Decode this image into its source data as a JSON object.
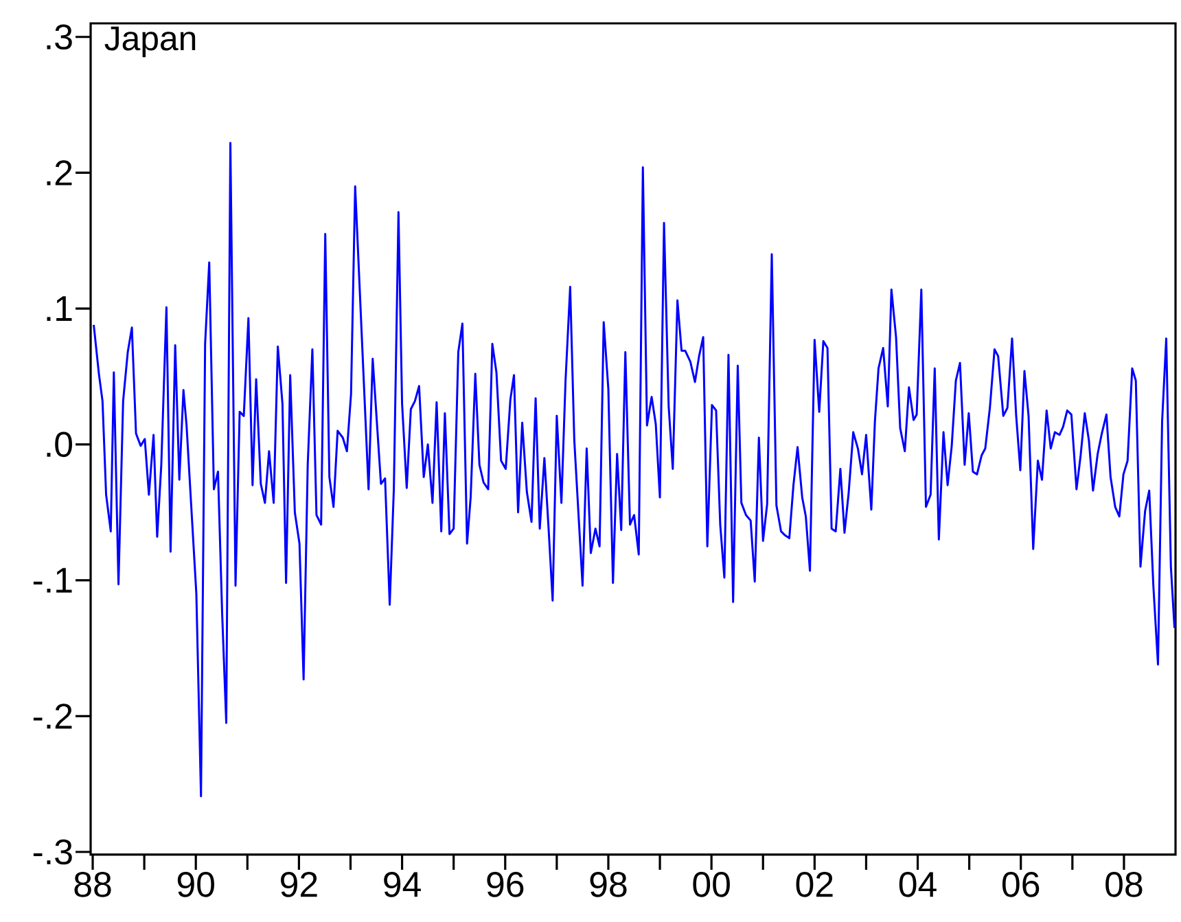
{
  "chart_data": {
    "type": "line",
    "title": "Japan",
    "xlim": [
      1987.96,
      2009.0
    ],
    "ylim": [
      -0.302,
      0.31
    ],
    "xticks": [
      {
        "value": 1988,
        "label": "88"
      },
      {
        "value": 1989,
        "label": null
      },
      {
        "value": 1990,
        "label": "90"
      },
      {
        "value": 1991,
        "label": null
      },
      {
        "value": 1992,
        "label": "92"
      },
      {
        "value": 1993,
        "label": null
      },
      {
        "value": 1994,
        "label": "94"
      },
      {
        "value": 1995,
        "label": null
      },
      {
        "value": 1996,
        "label": "96"
      },
      {
        "value": 1997,
        "label": null
      },
      {
        "value": 1998,
        "label": "98"
      },
      {
        "value": 1999,
        "label": null
      },
      {
        "value": 2000,
        "label": "00"
      },
      {
        "value": 2001,
        "label": null
      },
      {
        "value": 2002,
        "label": "02"
      },
      {
        "value": 2003,
        "label": null
      },
      {
        "value": 2004,
        "label": "04"
      },
      {
        "value": 2005,
        "label": null
      },
      {
        "value": 2006,
        "label": "06"
      },
      {
        "value": 2007,
        "label": null
      },
      {
        "value": 2008,
        "label": "08"
      }
    ],
    "yticks": [
      {
        "value": -0.3,
        "label": "-.3"
      },
      {
        "value": -0.2,
        "label": "-.2"
      },
      {
        "value": -0.1,
        "label": "-.1"
      },
      {
        "value": 0,
        "label": ".0"
      },
      {
        "value": 0.1,
        "label": ".1"
      },
      {
        "value": 0.2,
        "label": ".2"
      },
      {
        "value": 0.3,
        "label": ".3"
      }
    ],
    "x": [
      1988.02,
      1988.12,
      1988.19,
      1988.26,
      1988.35,
      1988.41,
      1988.5,
      1988.59,
      1988.68,
      1988.76,
      1988.84,
      1988.93,
      1989.01,
      1989.09,
      1989.18,
      1989.25,
      1989.33,
      1989.43,
      1989.51,
      1989.6,
      1989.68,
      1989.76,
      1989.82,
      1990.01,
      1990.1,
      1990.18,
      1990.26,
      1990.35,
      1990.43,
      1990.51,
      1990.59,
      1990.67,
      1990.77,
      1990.85,
      1990.93,
      1991.02,
      1991.1,
      1991.17,
      1991.26,
      1991.34,
      1991.42,
      1991.51,
      1991.59,
      1991.68,
      1991.75,
      1991.83,
      1991.92,
      1992.01,
      1992.09,
      1992.17,
      1992.26,
      1992.34,
      1992.43,
      1992.51,
      1992.59,
      1992.67,
      1992.75,
      1992.85,
      1992.93,
      1993.01,
      1993.09,
      1993.35,
      1993.43,
      1993.59,
      1993.67,
      1993.76,
      1993.84,
      1993.93,
      1994.0,
      1994.09,
      1994.17,
      1994.25,
      1994.33,
      1994.42,
      1994.5,
      1994.59,
      1994.67,
      1994.76,
      1994.83,
      1994.92,
      1995.0,
      1995.09,
      1995.17,
      1995.26,
      1995.33,
      1995.42,
      1995.5,
      1995.58,
      1995.67,
      1995.75,
      1995.83,
      1995.92,
      1996.01,
      1996.1,
      1996.17,
      1996.25,
      1996.33,
      1996.42,
      1996.51,
      1996.59,
      1996.67,
      1996.76,
      1996.84,
      1996.92,
      1997.0,
      1997.09,
      1997.17,
      1997.26,
      1997.34,
      1997.5,
      1997.58,
      1997.66,
      1997.75,
      1997.83,
      1997.91,
      1998.0,
      1998.09,
      1998.17,
      1998.25,
      1998.33,
      1998.42,
      1998.5,
      1998.59,
      1998.67,
      1998.75,
      1998.84,
      1998.92,
      1999.0,
      1999.08,
      1999.17,
      1999.25,
      1999.34,
      1999.42,
      1999.49,
      1999.59,
      1999.68,
      1999.76,
      1999.84,
      1999.92,
      2000.01,
      2000.09,
      2000.17,
      2000.25,
      2000.33,
      2000.42,
      2000.51,
      2000.58,
      2000.67,
      2000.76,
      2000.84,
      2000.92,
      2001.0,
      2001.08,
      2001.17,
      2001.26,
      2001.35,
      2001.43,
      2001.51,
      2001.59,
      2001.67,
      2001.76,
      2001.83,
      2001.91,
      2002.0,
      2002.09,
      2002.17,
      2002.25,
      2002.33,
      2002.41,
      2002.5,
      2002.58,
      2002.66,
      2002.75,
      2002.84,
      2002.92,
      2003.0,
      2003.1,
      2003.17,
      2003.24,
      2003.33,
      2003.42,
      2003.49,
      2003.58,
      2003.66,
      2003.75,
      2003.83,
      2003.92,
      2003.98,
      2004.07,
      2004.16,
      2004.25,
      2004.33,
      2004.41,
      2004.5,
      2004.58,
      2004.66,
      2004.74,
      2004.82,
      2004.91,
      2004.99,
      2005.07,
      2005.15,
      2005.24,
      2005.31,
      2005.4,
      2005.49,
      2005.56,
      2005.66,
      2005.74,
      2005.83,
      2005.91,
      2005.99,
      2006.07,
      2006.15,
      2006.24,
      2006.33,
      2006.41,
      2006.5,
      2006.58,
      2006.66,
      2006.75,
      2006.82,
      2006.9,
      2006.98,
      2007.08,
      2007.16,
      2007.24,
      2007.32,
      2007.4,
      2007.49,
      2007.57,
      2007.66,
      2007.74,
      2007.83,
      2007.91,
      2007.99,
      2008.07,
      2008.16,
      2008.23,
      2008.32,
      2008.41,
      2008.49,
      2008.57,
      2008.66,
      2008.74,
      2008.82,
      2008.91,
      2008.98
    ],
    "series": [
      {
        "color": "#0000ff",
        "values": [
          0.088,
          0.052,
          0.032,
          -0.037,
          -0.064,
          0.053,
          -0.103,
          0.032,
          0.068,
          0.086,
          0.008,
          -0.001,
          0.004,
          -0.037,
          0.007,
          -0.068,
          -0.015,
          0.101,
          -0.079,
          0.073,
          -0.026,
          0.04,
          0.014,
          -0.11,
          -0.259,
          0.074,
          0.134,
          -0.033,
          -0.02,
          -0.124,
          -0.205,
          0.222,
          -0.104,
          0.024,
          0.021,
          0.093,
          -0.03,
          0.048,
          -0.029,
          -0.043,
          -0.005,
          -0.043,
          0.072,
          0.03,
          -0.102,
          0.051,
          -0.05,
          -0.073,
          -0.173,
          -0.015,
          0.07,
          -0.052,
          -0.059,
          0.155,
          -0.024,
          -0.046,
          0.01,
          0.005,
          -0.005,
          0.037,
          0.19,
          -0.033,
          0.063,
          -0.029,
          -0.025,
          -0.118,
          -0.033,
          0.171,
          0.03,
          -0.032,
          0.026,
          0.032,
          0.043,
          -0.024,
          0.0,
          -0.043,
          0.031,
          -0.064,
          0.023,
          -0.066,
          -0.062,
          0.068,
          0.089,
          -0.073,
          -0.039,
          0.052,
          -0.015,
          -0.028,
          -0.033,
          0.074,
          0.053,
          -0.012,
          -0.018,
          0.033,
          0.051,
          -0.05,
          0.016,
          -0.035,
          -0.057,
          0.034,
          -0.062,
          -0.01,
          -0.061,
          -0.115,
          0.021,
          -0.043,
          0.047,
          0.116,
          0.003,
          -0.104,
          -0.003,
          -0.08,
          -0.062,
          -0.075,
          0.09,
          0.041,
          -0.102,
          -0.007,
          -0.063,
          0.068,
          -0.059,
          -0.052,
          -0.081,
          0.204,
          0.014,
          0.035,
          0.015,
          -0.039,
          0.163,
          0.028,
          -0.018,
          0.106,
          0.069,
          0.069,
          0.061,
          0.046,
          0.065,
          0.079,
          -0.075,
          0.029,
          0.025,
          -0.059,
          -0.098,
          0.066,
          -0.116,
          0.058,
          -0.043,
          -0.052,
          -0.056,
          -0.101,
          0.005,
          -0.071,
          -0.044,
          0.14,
          -0.045,
          -0.064,
          -0.067,
          -0.069,
          -0.03,
          -0.002,
          -0.039,
          -0.053,
          -0.093,
          0.077,
          0.024,
          0.076,
          0.071,
          -0.062,
          -0.064,
          -0.018,
          -0.065,
          -0.036,
          0.009,
          -0.003,
          -0.022,
          0.007,
          -0.048,
          0.017,
          0.056,
          0.071,
          0.028,
          0.114,
          0.079,
          0.012,
          -0.005,
          0.042,
          0.018,
          0.022,
          0.114,
          -0.046,
          -0.037,
          0.056,
          -0.07,
          0.009,
          -0.03,
          -0.001,
          0.047,
          0.06,
          -0.015,
          0.023,
          -0.02,
          -0.022,
          -0.008,
          -0.003,
          0.027,
          0.07,
          0.065,
          0.021,
          0.027,
          0.078,
          0.021,
          -0.019,
          0.054,
          0.021,
          -0.077,
          -0.012,
          -0.026,
          0.025,
          -0.003,
          0.009,
          0.007,
          0.013,
          0.025,
          0.022,
          -0.033,
          -0.008,
          0.023,
          0.003,
          -0.034,
          -0.007,
          0.008,
          0.022,
          -0.024,
          -0.046,
          -0.053,
          -0.022,
          -0.012,
          0.056,
          0.047,
          -0.09,
          -0.049,
          -0.034,
          -0.104,
          -0.162,
          0.017,
          0.078,
          -0.09,
          -0.135
        ]
      }
    ]
  }
}
